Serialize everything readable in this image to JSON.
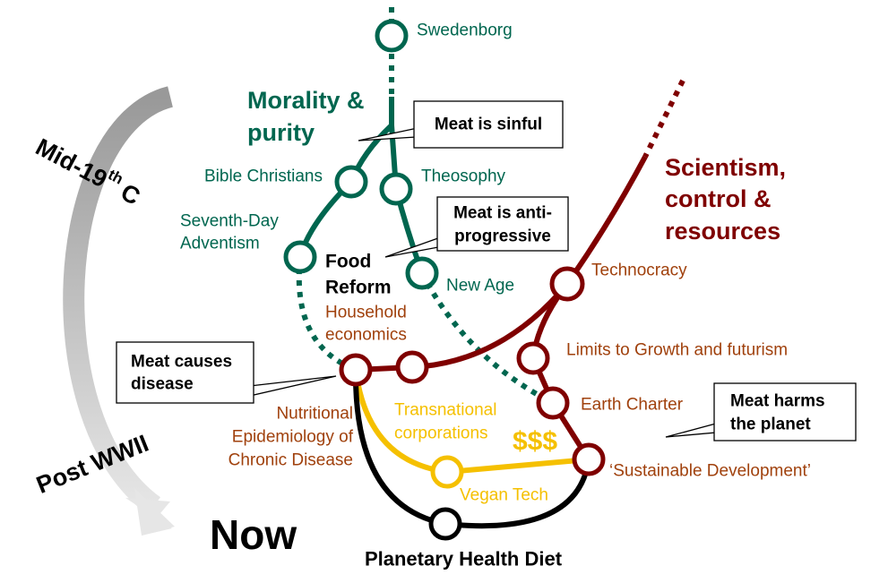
{
  "rotated_labels": {
    "mid_19th": {
      "main": "Mid-19",
      "sup": "th",
      "end": "C"
    },
    "post_wwii": "Post WWII"
  },
  "headings": {
    "morality": [
      "Morality &",
      "purity"
    ],
    "scientism": [
      "Scientism,",
      "control &",
      "resources"
    ],
    "food_reform": [
      "Food",
      "Reform"
    ],
    "now": "Now",
    "planetary_health_diet": "Planetary Health Diet"
  },
  "stations": {
    "swedenborg": [
      "Swedenborg"
    ],
    "bible_christians": [
      "Bible Christians"
    ],
    "theosophy": [
      "Theosophy"
    ],
    "seventh_day_adventism": [
      "Seventh-Day",
      "Adventism"
    ],
    "new_age": [
      "New Age"
    ],
    "household_economics": [
      "Household",
      "economics"
    ],
    "technocracy": [
      "Technocracy"
    ],
    "limits_to_growth": [
      "Limits to Growth and futurism"
    ],
    "earth_charter": [
      "Earth Charter"
    ],
    "nutritional_epidemiology": [
      "Nutritional",
      "Epidemiology of",
      "Chronic Disease"
    ],
    "transnational_corporations": [
      "Transnational",
      "corporations"
    ],
    "sustainable_development": [
      "‘Sustainable Development’"
    ],
    "vegan_tech": [
      "Vegan Tech"
    ]
  },
  "money": "$$$",
  "callouts": {
    "meat_is_sinful": [
      "Meat is sinful"
    ],
    "meat_is_anti_progressive": [
      "Meat is anti-",
      "progressive"
    ],
    "meat_causes_disease": [
      "Meat causes",
      "disease"
    ],
    "meat_harms_the_planet": [
      "Meat harms",
      "the planet"
    ]
  }
}
